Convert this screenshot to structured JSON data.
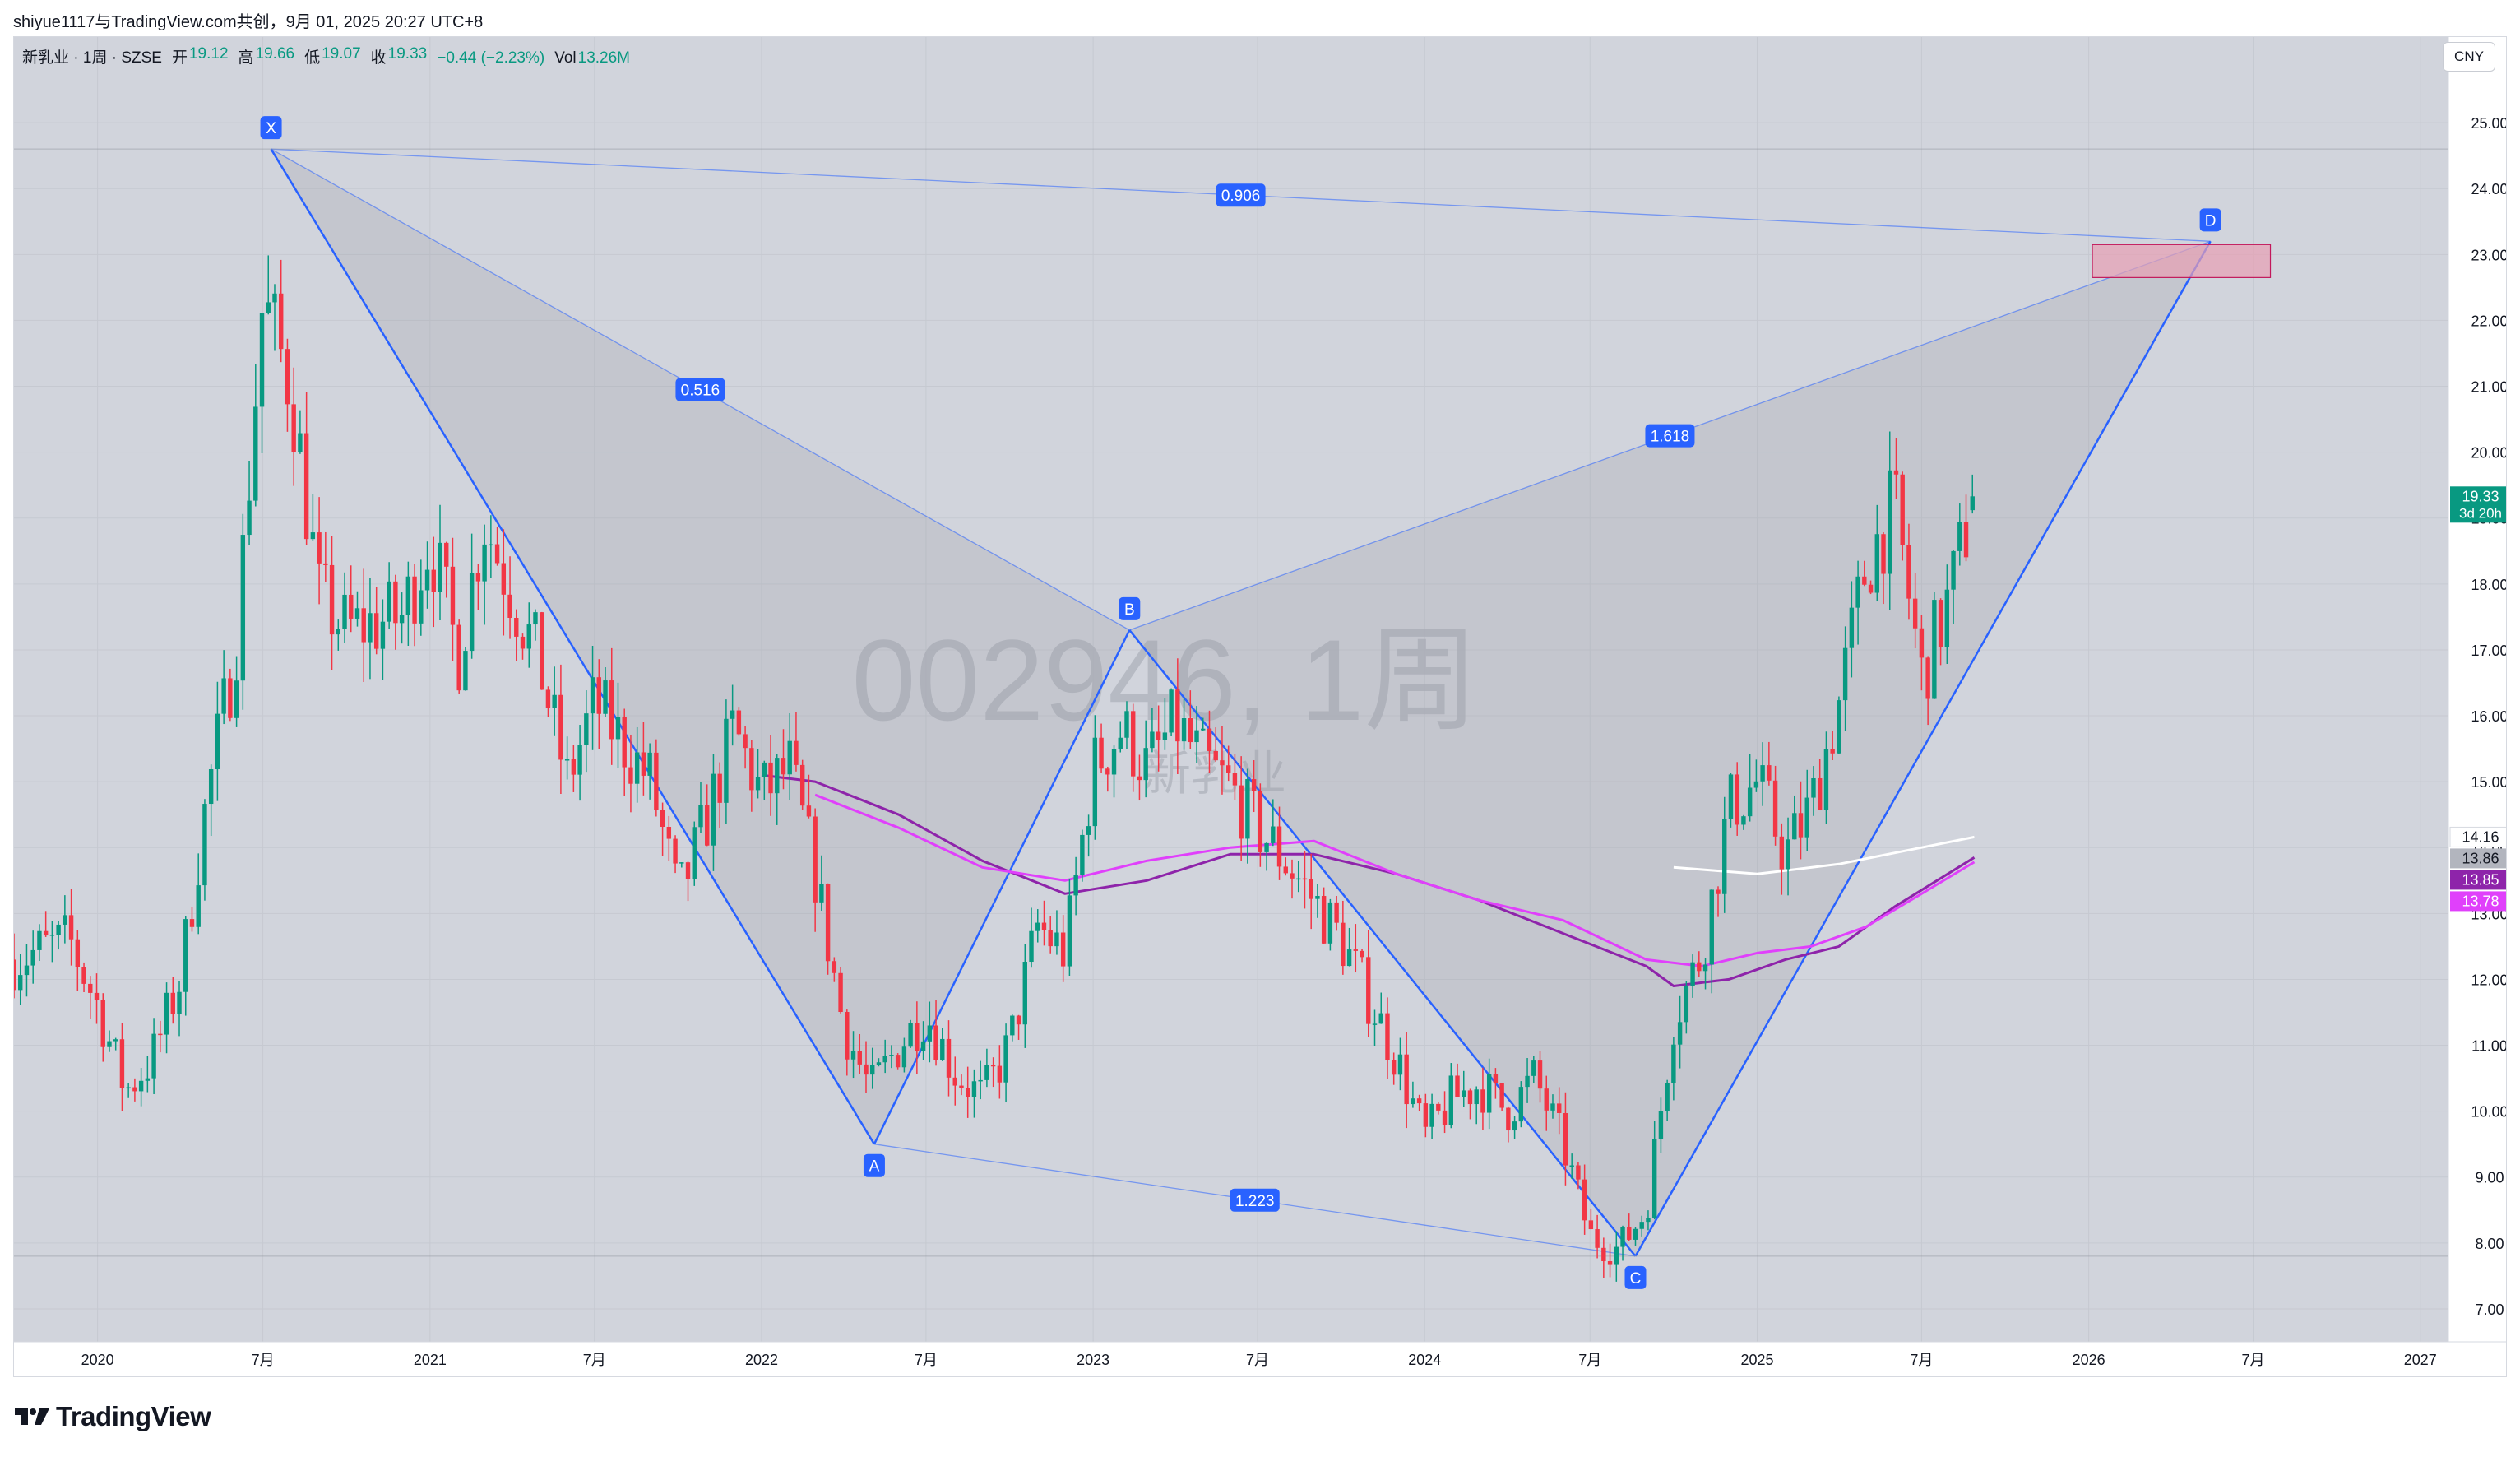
{
  "caption": "shiyue1117与TradingView.com共创，9月 01, 2025 20:27 UTC+8",
  "legend": {
    "symbol": "新乳业 · 1周 · SZSE",
    "open_label": "开",
    "open": "19.12",
    "high_label": "高",
    "high": "19.66",
    "low_label": "低",
    "low": "19.07",
    "close_label": "收",
    "close": "19.33",
    "change": "−0.44 (−2.23%)",
    "vol_label": "Vol",
    "vol": "13.26M"
  },
  "currency": "CNY",
  "watermark": {
    "ticker": "002946, 1周",
    "name": "新乳业"
  },
  "footer": {
    "brand": "TradingView"
  },
  "colors": {
    "background": "#d1d4dc",
    "up": "#089981",
    "down": "#f23645",
    "pattern_line": "#2962ff",
    "ma_purple": "#8e24aa",
    "ma_magenta": "#e040fb",
    "ma_white": "#ffffff",
    "zone": "#e8a0b4"
  },
  "chart_data": {
    "type": "candlestick",
    "timeframe": "1周",
    "x_axis": {
      "start": "2019-10",
      "end": "2027-02",
      "ticks": [
        {
          "label": "2020",
          "date": "2020-01"
        },
        {
          "label": "7月",
          "date": "2020-07"
        },
        {
          "label": "2021",
          "date": "2021-01"
        },
        {
          "label": "7月",
          "date": "2021-07"
        },
        {
          "label": "2022",
          "date": "2022-01"
        },
        {
          "label": "7月",
          "date": "2022-07"
        },
        {
          "label": "2023",
          "date": "2023-01"
        },
        {
          "label": "7月",
          "date": "2023-07"
        },
        {
          "label": "2024",
          "date": "2024-01"
        },
        {
          "label": "7月",
          "date": "2024-07"
        },
        {
          "label": "2025",
          "date": "2025-01"
        },
        {
          "label": "7月",
          "date": "2025-07"
        },
        {
          "label": "2026",
          "date": "2026-01"
        },
        {
          "label": "7月",
          "date": "2026-07"
        },
        {
          "label": "2027",
          "date": "2027-01"
        }
      ]
    },
    "y_axis": {
      "range": [
        6.5,
        26.3
      ],
      "ticks": [
        "7.00",
        "8.00",
        "9.00",
        "10.00",
        "11.00",
        "12.00",
        "13.00",
        "14.00",
        "15.00",
        "16.00",
        "17.00",
        "18.00",
        "19.00",
        "20.00",
        "21.00",
        "22.00",
        "23.00",
        "24.00",
        "25.00"
      ]
    },
    "price_path": [
      [
        "2019-10",
        12.3
      ],
      [
        "2019-12",
        12.6
      ],
      [
        "2020-01",
        11.6
      ],
      [
        "2020-02",
        10.3
      ],
      [
        "2020-03",
        10.8
      ],
      [
        "2020-04",
        12.0
      ],
      [
        "2020-05",
        14.8
      ],
      [
        "2020-06",
        17.0
      ],
      [
        "2020-07",
        22.3
      ],
      [
        "2020-08",
        21.0
      ],
      [
        "2020-09",
        17.8
      ],
      [
        "2020-10",
        17.3
      ],
      [
        "2020-12",
        17.5
      ],
      [
        "2021-01",
        18.7
      ],
      [
        "2021-02",
        16.9
      ],
      [
        "2021-03",
        19.0
      ],
      [
        "2021-05",
        16.8
      ],
      [
        "2021-06",
        15.0
      ],
      [
        "2021-07",
        16.2
      ],
      [
        "2021-09",
        15.0
      ],
      [
        "2021-10",
        13.2
      ],
      [
        "2021-11",
        14.4
      ],
      [
        "2021-12",
        15.8
      ],
      [
        "2022-01",
        14.8
      ],
      [
        "2022-02",
        15.2
      ],
      [
        "2022-03",
        13.6
      ],
      [
        "2022-04",
        11.3
      ],
      [
        "2022-05",
        10.3
      ],
      [
        "2022-06",
        11.0
      ],
      [
        "2022-07",
        11.5
      ],
      [
        "2022-08",
        10.6
      ],
      [
        "2022-09",
        10.2
      ],
      [
        "2022-10",
        11.0
      ],
      [
        "2022-11",
        12.8
      ],
      [
        "2022-12",
        12.4
      ],
      [
        "2023-01",
        15.2
      ],
      [
        "2023-02",
        15.8
      ],
      [
        "2023-03",
        15.2
      ],
      [
        "2023-04",
        15.9
      ],
      [
        "2023-05",
        15.3
      ],
      [
        "2023-06",
        14.9
      ],
      [
        "2023-07",
        14.3
      ],
      [
        "2023-08",
        13.8
      ],
      [
        "2023-09",
        13.2
      ],
      [
        "2023-10",
        12.6
      ],
      [
        "2023-11",
        11.7
      ],
      [
        "2023-12",
        10.8
      ],
      [
        "2024-01",
        9.6
      ],
      [
        "2024-02",
        10.2
      ],
      [
        "2024-03",
        10.4
      ],
      [
        "2024-04",
        10.0
      ],
      [
        "2024-05",
        10.5
      ],
      [
        "2024-06",
        9.5
      ],
      [
        "2024-07",
        8.1
      ],
      [
        "2024-08",
        7.9
      ],
      [
        "2024-09",
        8.5
      ],
      [
        "2024-10",
        11.4
      ],
      [
        "2024-11",
        12.4
      ],
      [
        "2024-12",
        14.6
      ],
      [
        "2025-01",
        15.0
      ],
      [
        "2025-02",
        13.9
      ],
      [
        "2025-03",
        14.6
      ],
      [
        "2025-04",
        16.2
      ],
      [
        "2025-05",
        18.3
      ],
      [
        "2025-06",
        19.2
      ],
      [
        "2025-07",
        16.6
      ],
      [
        "2025-08",
        17.8
      ],
      [
        "2025-08-28",
        19.33
      ]
    ],
    "last_candle": {
      "date": "2025-08-28",
      "open": 19.12,
      "high": 19.66,
      "low": 19.07,
      "close": 19.33
    },
    "moving_averages": [
      {
        "color": "#ffffff",
        "last": 14.16,
        "points": [
          [
            "2024-10",
            13.7
          ],
          [
            "2025-01",
            13.6
          ],
          [
            "2025-04",
            13.75
          ],
          [
            "2025-07",
            14.0
          ],
          [
            "2025-08-28",
            14.16
          ]
        ]
      },
      {
        "color": "#8e24aa",
        "last": 13.85,
        "points": [
          [
            "2022-01",
            15.1
          ],
          [
            "2022-03",
            15.0
          ],
          [
            "2022-06",
            14.5
          ],
          [
            "2022-09",
            13.8
          ],
          [
            "2022-12",
            13.3
          ],
          [
            "2023-03",
            13.5
          ],
          [
            "2023-06",
            13.9
          ],
          [
            "2023-09",
            13.9
          ],
          [
            "2023-12",
            13.6
          ],
          [
            "2024-03",
            13.2
          ],
          [
            "2024-06",
            12.7
          ],
          [
            "2024-09",
            12.2
          ],
          [
            "2024-10",
            11.9
          ],
          [
            "2024-12",
            12.0
          ],
          [
            "2025-02",
            12.3
          ],
          [
            "2025-04",
            12.5
          ],
          [
            "2025-06",
            13.1
          ],
          [
            "2025-08-28",
            13.85
          ]
        ]
      },
      {
        "color": "#e040fb",
        "last": 13.78,
        "points": [
          [
            "2022-03",
            14.8
          ],
          [
            "2022-06",
            14.3
          ],
          [
            "2022-09",
            13.7
          ],
          [
            "2022-12",
            13.5
          ],
          [
            "2023-03",
            13.8
          ],
          [
            "2023-06",
            14.0
          ],
          [
            "2023-09",
            14.1
          ],
          [
            "2023-12",
            13.6
          ],
          [
            "2024-03",
            13.2
          ],
          [
            "2024-06",
            12.9
          ],
          [
            "2024-09",
            12.3
          ],
          [
            "2024-11",
            12.2
          ],
          [
            "2025-01",
            12.4
          ],
          [
            "2025-03",
            12.5
          ],
          [
            "2025-05",
            12.8
          ],
          [
            "2025-07",
            13.3
          ],
          [
            "2025-08-28",
            13.78
          ]
        ]
      }
    ],
    "price_labels": [
      {
        "text": "19.33",
        "sub": "3d 20h",
        "value": 19.33,
        "color": "#089981"
      },
      {
        "text": "14.16",
        "value": 14.16,
        "color": "#ffffff"
      },
      {
        "text": "13.86",
        "value": 13.86,
        "color": "#b2b5be"
      },
      {
        "text": "13.85",
        "value": 13.85,
        "color": "#8e24aa"
      },
      {
        "text": "13.78",
        "value": 13.78,
        "color": "#e040fb"
      }
    ],
    "harmonic_pattern": {
      "points": [
        {
          "label": "X",
          "date": "2020-07-10",
          "price": 24.6
        },
        {
          "label": "A",
          "date": "2022-05-05",
          "price": 9.5
        },
        {
          "label": "B",
          "date": "2023-02-10",
          "price": 17.3
        },
        {
          "label": "C",
          "date": "2024-08-20",
          "price": 7.8
        },
        {
          "label": "D",
          "date": "2026-05-15",
          "price": 23.2
        }
      ],
      "ratios": [
        {
          "text": "0.906",
          "between": [
            "X",
            "D"
          ]
        },
        {
          "text": "0.516",
          "between": [
            "X",
            "B"
          ]
        },
        {
          "text": "1.618",
          "between": [
            "B",
            "D"
          ]
        },
        {
          "text": "1.223",
          "between": [
            "A",
            "C"
          ]
        }
      ],
      "target_zone": {
        "date_from": "2026-01-05",
        "date_to": "2026-07-20",
        "price_from": 22.65,
        "price_to": 23.15
      }
    }
  }
}
